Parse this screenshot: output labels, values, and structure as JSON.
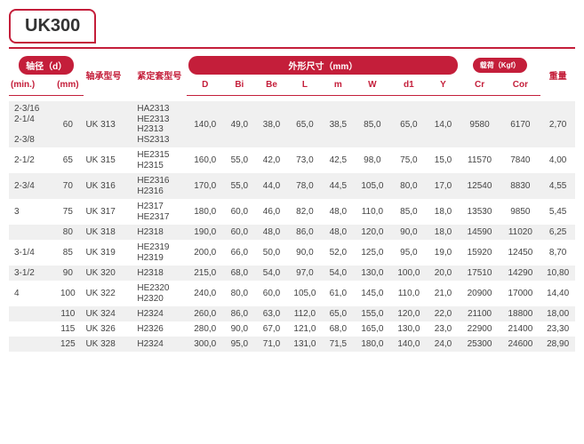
{
  "title": "UK300",
  "header": {
    "shaft": "轴径（d）",
    "min": "(min.)",
    "mm": "(mm)",
    "model": "轴承型号",
    "sleeve": "紧定套型号",
    "dims": "外形尺寸（mm）",
    "load": "载荷（Kgf）",
    "weight": "重量",
    "cols": {
      "D": "D",
      "Bi": "Bi",
      "Be": "Be",
      "L": "L",
      "m": "m",
      "W": "W",
      "d1": "d1",
      "Y": "Y",
      "Cr": "Cr",
      "Cor": "Cor"
    }
  },
  "rows": [
    {
      "alt": true,
      "min": "2-3/16\n2-1/4\n\n2-3/8",
      "mm": "60",
      "model": "UK 313",
      "sleeve": "HA2313\nHE2313\nH2313\nHS2313",
      "D": "140,0",
      "Bi": "49,0",
      "Be": "38,0",
      "L": "65,0",
      "m": "38,5",
      "W": "85,0",
      "d1": "65,0",
      "Y": "14,0",
      "Cr": "9580",
      "Cor": "6170",
      "wt": "2,70"
    },
    {
      "alt": false,
      "min": "2-1/2",
      "mm": "65",
      "model": "UK 315",
      "sleeve": "HE2315\nH2315",
      "D": "160,0",
      "Bi": "55,0",
      "Be": "42,0",
      "L": "73,0",
      "m": "42,5",
      "W": "98,0",
      "d1": "75,0",
      "Y": "15,0",
      "Cr": "11570",
      "Cor": "7840",
      "wt": "4,00"
    },
    {
      "alt": true,
      "min": "2-3/4",
      "mm": "70",
      "model": "UK 316",
      "sleeve": "HE2316\nH2316",
      "D": "170,0",
      "Bi": "55,0",
      "Be": "44,0",
      "L": "78,0",
      "m": "44,5",
      "W": "105,0",
      "d1": "80,0",
      "Y": "17,0",
      "Cr": "12540",
      "Cor": "8830",
      "wt": "4,55"
    },
    {
      "alt": false,
      "min": "3",
      "mm": "75",
      "model": "UK 317",
      "sleeve": "H2317\nHE2317",
      "D": "180,0",
      "Bi": "60,0",
      "Be": "46,0",
      "L": "82,0",
      "m": "48,0",
      "W": "110,0",
      "d1": "85,0",
      "Y": "18,0",
      "Cr": "13530",
      "Cor": "9850",
      "wt": "5,45"
    },
    {
      "alt": true,
      "min": "",
      "mm": "80",
      "model": "UK 318",
      "sleeve": "H2318",
      "D": "190,0",
      "Bi": "60,0",
      "Be": "48,0",
      "L": "86,0",
      "m": "48,0",
      "W": "120,0",
      "d1": "90,0",
      "Y": "18,0",
      "Cr": "14590",
      "Cor": "11020",
      "wt": "6,25"
    },
    {
      "alt": false,
      "min": "3-1/4",
      "mm": "85",
      "model": "UK 319",
      "sleeve": "HE2319\nH2319",
      "D": "200,0",
      "Bi": "66,0",
      "Be": "50,0",
      "L": "90,0",
      "m": "52,0",
      "W": "125,0",
      "d1": "95,0",
      "Y": "19,0",
      "Cr": "15920",
      "Cor": "12450",
      "wt": "8,70"
    },
    {
      "alt": true,
      "min": "3-1/2",
      "mm": "90",
      "model": "UK 320",
      "sleeve": "H2318",
      "D": "215,0",
      "Bi": "68,0",
      "Be": "54,0",
      "L": "97,0",
      "m": "54,0",
      "W": "130,0",
      "d1": "100,0",
      "Y": "20,0",
      "Cr": "17510",
      "Cor": "14290",
      "wt": "10,80"
    },
    {
      "alt": false,
      "min": "4",
      "mm": "100",
      "model": "UK 322",
      "sleeve": "HE2320\nH2320",
      "D": "240,0",
      "Bi": "80,0",
      "Be": "60,0",
      "L": "105,0",
      "m": "61,0",
      "W": "145,0",
      "d1": "110,0",
      "Y": "21,0",
      "Cr": "20900",
      "Cor": "17000",
      "wt": "14,40"
    },
    {
      "alt": true,
      "min": "",
      "mm": "110",
      "model": "UK 324",
      "sleeve": "H2324",
      "D": "260,0",
      "Bi": "86,0",
      "Be": "63,0",
      "L": "112,0",
      "m": "65,0",
      "W": "155,0",
      "d1": "120,0",
      "Y": "22,0",
      "Cr": "21100",
      "Cor": "18800",
      "wt": "18,00"
    },
    {
      "alt": false,
      "min": "",
      "mm": "115",
      "model": "UK 326",
      "sleeve": "H2326",
      "D": "280,0",
      "Bi": "90,0",
      "Be": "67,0",
      "L": "121,0",
      "m": "68,0",
      "W": "165,0",
      "d1": "130,0",
      "Y": "23,0",
      "Cr": "22900",
      "Cor": "21400",
      "wt": "23,30"
    },
    {
      "alt": true,
      "min": "",
      "mm": "125",
      "model": "UK 328",
      "sleeve": "H2324",
      "D": "300,0",
      "Bi": "95,0",
      "Be": "71,0",
      "L": "131,0",
      "m": "71,5",
      "W": "180,0",
      "d1": "140,0",
      "Y": "24,0",
      "Cr": "25300",
      "Cor": "24600",
      "wt": "28,90"
    }
  ]
}
